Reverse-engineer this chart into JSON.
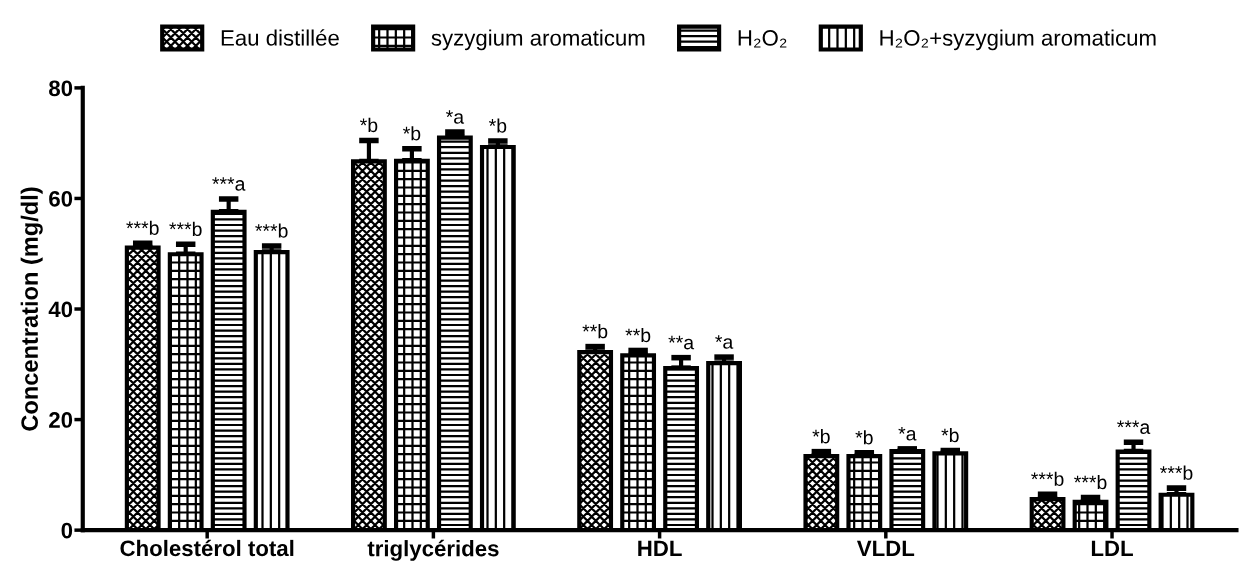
{
  "chart_data": {
    "type": "bar",
    "categories": [
      "Cholestérol total",
      "triglycérides",
      "HDL",
      "VLDL",
      "LDL"
    ],
    "ylabel": "Concentration (mg/dl)",
    "ylim": [
      0,
      80
    ],
    "yticks": [
      0,
      20,
      40,
      60,
      80
    ],
    "legend": "top",
    "grid": false,
    "series": [
      {
        "name": "Eau distillée",
        "color": "#000000",
        "values": [
          51.1,
          66.7,
          32.2,
          13.4,
          5.6
        ],
        "errors": [
          0.8,
          3.8,
          1.0,
          0.8,
          0.9
        ],
        "value_labels": [
          "***b",
          "*b",
          "**b",
          "*b",
          "***b"
        ]
      },
      {
        "name": "syzygium aromaticum",
        "color": "#000000",
        "values": [
          49.9,
          66.8,
          31.6,
          13.4,
          5.1
        ],
        "errors": [
          1.8,
          2.2,
          0.9,
          0.6,
          0.8
        ],
        "value_labels": [
          "***b",
          "*b",
          "**b",
          "*b",
          "***b"
        ]
      },
      {
        "name": "H₂O₂",
        "color": "#000000",
        "values": [
          57.6,
          71.0,
          29.3,
          14.3,
          14.2
        ],
        "errors": [
          2.3,
          1.0,
          1.9,
          0.4,
          1.7
        ],
        "value_labels": [
          "***a",
          "*a",
          "**a",
          "*a",
          "***a"
        ]
      },
      {
        "name": "H₂O₂+syzygium aromaticum",
        "color": "#000000",
        "values": [
          50.3,
          69.3,
          30.2,
          13.9,
          6.4
        ],
        "errors": [
          1.1,
          1.1,
          1.1,
          0.5,
          1.2
        ],
        "value_labels": [
          "***b",
          "*b",
          "*a",
          "*b",
          "***b"
        ]
      }
    ]
  }
}
